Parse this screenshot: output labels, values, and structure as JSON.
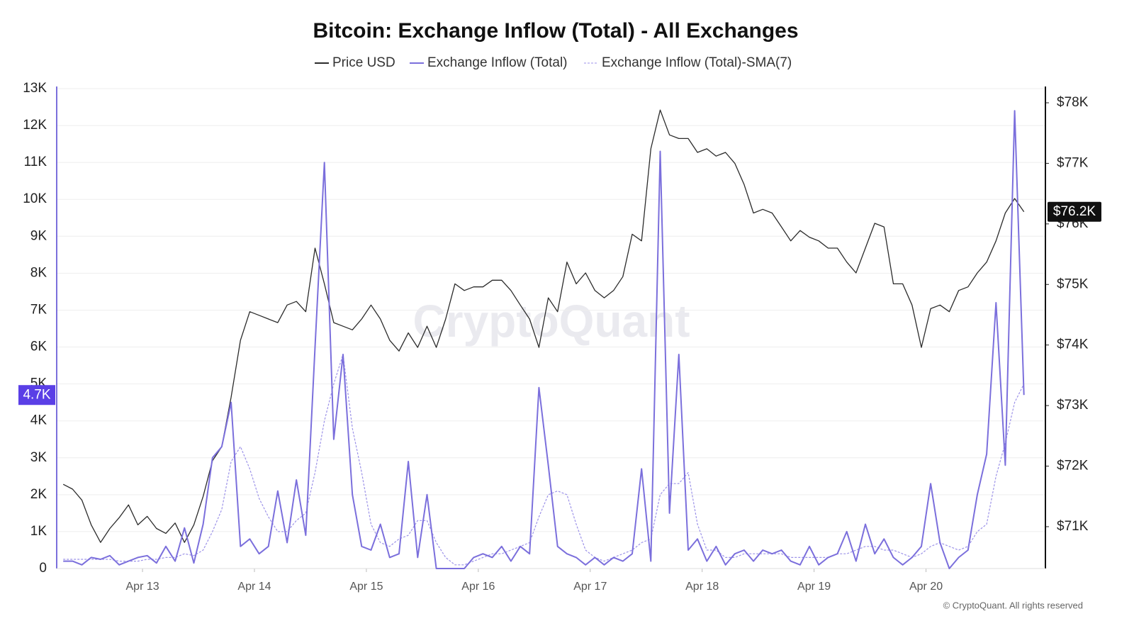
{
  "chart_data": {
    "type": "line",
    "title": "Bitcoin: Exchange Inflow (Total) - All Exchanges",
    "watermark": "CryptoQuant",
    "footer": "© CryptoQuant. All rights reserved",
    "x": [
      7,
      9,
      11,
      13,
      15,
      17,
      19,
      21,
      23,
      25,
      27,
      29,
      31,
      33,
      35,
      37,
      39,
      41,
      43,
      45,
      47,
      49,
      51,
      53,
      55,
      57,
      59,
      61,
      63,
      65,
      67,
      69,
      71,
      73,
      75,
      77,
      79,
      81,
      83,
      85,
      87,
      89,
      91,
      93,
      95,
      97,
      99,
      101,
      103,
      105,
      107,
      109,
      111,
      113,
      115,
      117,
      119,
      121,
      123,
      125,
      127,
      129,
      131,
      133,
      135,
      137,
      139,
      141,
      143,
      145,
      147,
      149,
      151,
      153,
      155,
      157,
      159,
      161,
      163,
      165,
      167,
      169,
      171,
      173,
      175,
      177,
      179,
      181,
      183,
      185,
      187,
      189,
      191,
      193,
      195,
      197,
      199,
      201,
      203,
      205,
      207,
      209,
      211,
      213
    ],
    "xlim": [
      5.6,
      217.6
    ],
    "xticks": [
      {
        "value": 24,
        "label": "Apr 13"
      },
      {
        "value": 48,
        "label": "Apr 14"
      },
      {
        "value": 72,
        "label": "Apr 15"
      },
      {
        "value": 96,
        "label": "Apr 16"
      },
      {
        "value": 120,
        "label": "Apr 17"
      },
      {
        "value": 144,
        "label": "Apr 18"
      },
      {
        "value": 168,
        "label": "Apr 19"
      },
      {
        "value": 192,
        "label": "Apr 20"
      }
    ],
    "ylim": [
      0,
      13000
    ],
    "yticks": [
      0,
      {
        "value": 1000,
        "label": "1K"
      },
      {
        "value": 2000,
        "label": "2K"
      },
      {
        "value": 3000,
        "label": "3K"
      },
      {
        "value": 4000,
        "label": "4K"
      },
      {
        "value": 5000,
        "label": "5K"
      },
      {
        "value": 6000,
        "label": "6K"
      },
      {
        "value": 7000,
        "label": "7K"
      },
      {
        "value": 8000,
        "label": "8K"
      },
      {
        "value": 9000,
        "label": "9K"
      },
      {
        "value": 10000,
        "label": "10K"
      },
      {
        "value": 11000,
        "label": "11K"
      },
      {
        "value": 12000,
        "label": "12K"
      },
      {
        "value": 13000,
        "label": "13K"
      }
    ],
    "y2lim": [
      70309,
      78234
    ],
    "y2ticks": [
      {
        "value": 71000,
        "label": "$71K"
      },
      {
        "value": 72000,
        "label": "$72K"
      },
      {
        "value": 73000,
        "label": "$73K"
      },
      {
        "value": 74000,
        "label": "$74K"
      },
      {
        "value": 75000,
        "label": "$75K"
      },
      {
        "value": 76000,
        "label": "$76K"
      },
      {
        "value": 77000,
        "label": "$77K"
      },
      {
        "value": 78000,
        "label": "$78K"
      }
    ],
    "grid": true,
    "legend": "top",
    "last_value_labels": {
      "y": "4.7K",
      "y2": "$76.2K"
    },
    "series": [
      {
        "name": "Price USD",
        "color": "#2b2b2b",
        "axis": "y2",
        "style": "solid",
        "values": [
          71700,
          71620,
          71440,
          71030,
          70740,
          70970,
          71150,
          71360,
          71030,
          71170,
          70970,
          70890,
          71060,
          70740,
          71030,
          71500,
          72090,
          72320,
          73140,
          74080,
          74550,
          74490,
          74430,
          74370,
          74660,
          74720,
          74550,
          75600,
          75010,
          74370,
          74310,
          74250,
          74430,
          74660,
          74430,
          74080,
          73900,
          74200,
          73960,
          74310,
          73960,
          74430,
          75010,
          74900,
          74960,
          74960,
          75070,
          75070,
          74900,
          74660,
          74430,
          73960,
          74780,
          74550,
          75370,
          75010,
          75190,
          74900,
          74780,
          74900,
          75130,
          75830,
          75720,
          77240,
          77880,
          77470,
          77410,
          77410,
          77180,
          77240,
          77120,
          77180,
          77000,
          76650,
          76180,
          76240,
          76180,
          75950,
          75720,
          75890,
          75780,
          75720,
          75600,
          75600,
          75370,
          75190,
          75600,
          76010,
          75950,
          75010,
          75010,
          74660,
          73960,
          74600,
          74660,
          74550,
          74900,
          74960,
          75190,
          75370,
          75720,
          76180,
          76420,
          76200
        ]
      },
      {
        "name": "Exchange Inflow (Total)",
        "color": "#7b6fdc",
        "style": "solid",
        "values": [
          200,
          200,
          100,
          300,
          250,
          350,
          100,
          200,
          300,
          350,
          150,
          600,
          200,
          1100,
          150,
          1200,
          3000,
          3300,
          4500,
          600,
          800,
          400,
          600,
          2100,
          700,
          2400,
          900,
          6000,
          11000,
          3500,
          5800,
          2000,
          600,
          500,
          1200,
          300,
          400,
          2900,
          300,
          2000,
          0,
          0,
          0,
          0,
          300,
          400,
          300,
          600,
          200,
          600,
          400,
          4900,
          2800,
          600,
          400,
          300,
          100,
          300,
          100,
          300,
          200,
          400,
          2700,
          200,
          11300,
          1500,
          5800,
          500,
          800,
          200,
          600,
          100,
          400,
          500,
          200,
          500,
          400,
          500,
          200,
          100,
          600,
          100,
          300,
          400,
          1000,
          200,
          1200,
          400,
          800,
          300,
          100,
          300,
          600,
          2300,
          700,
          0,
          300,
          500,
          2000,
          3100,
          7200,
          2800,
          12400,
          4700
        ]
      },
      {
        "name": "Exchange Inflow (Total)-SMA(7)",
        "color": "#9c92e8",
        "style": "dashed",
        "values": [
          250,
          250,
          250,
          250,
          250,
          250,
          200,
          200,
          200,
          250,
          250,
          300,
          300,
          400,
          350,
          500,
          1000,
          1600,
          2900,
          3300,
          2700,
          1900,
          1400,
          1000,
          1000,
          1300,
          1500,
          2600,
          4000,
          5000,
          5800,
          3800,
          2600,
          1200,
          700,
          600,
          800,
          900,
          1300,
          1300,
          700,
          300,
          100,
          100,
          200,
          300,
          400,
          400,
          500,
          600,
          700,
          1400,
          2000,
          2100,
          2000,
          1200,
          500,
          300,
          200,
          300,
          400,
          500,
          700,
          800,
          2000,
          2300,
          2300,
          2600,
          1200,
          500,
          500,
          300,
          300,
          400,
          400,
          400,
          400,
          400,
          300,
          300,
          300,
          300,
          300,
          400,
          400,
          500,
          600,
          600,
          500,
          500,
          400,
          300,
          400,
          600,
          700,
          600,
          500,
          600,
          1000,
          1200,
          2500,
          3400,
          4500,
          5000
        ]
      }
    ]
  }
}
